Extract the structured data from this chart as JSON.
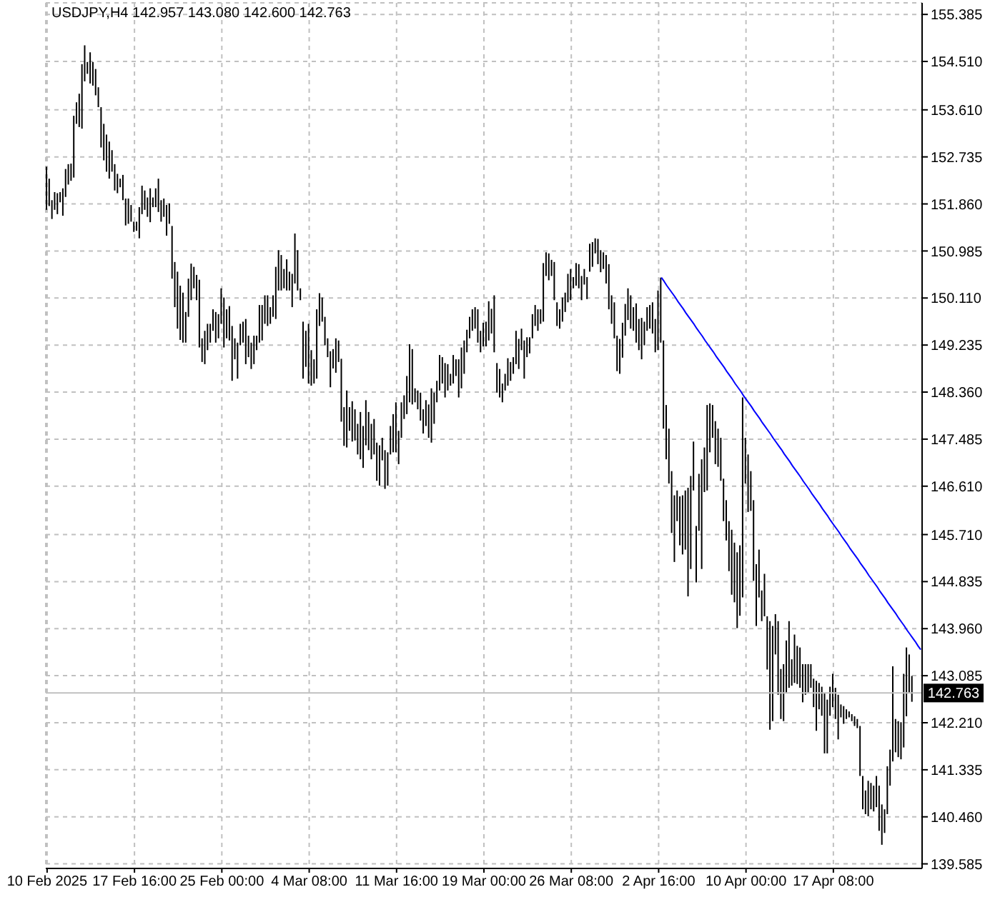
{
  "chart_data": {
    "type": "bar",
    "title": "USDJPY,H4 142.957 143.080 142.600 142.763",
    "categories": [
      "10 Feb 2025",
      null,
      null,
      null,
      null,
      null,
      null,
      null,
      null,
      null,
      null,
      null,
      null,
      null,
      null,
      null,
      null,
      null,
      null,
      null,
      null,
      null,
      null,
      null,
      null,
      null,
      null,
      null,
      null,
      null,
      null,
      null,
      "17 Feb 16:00",
      null,
      null,
      null,
      null,
      null,
      null,
      null,
      null,
      null,
      null,
      null,
      null,
      null,
      null,
      null,
      null,
      null,
      null,
      null,
      null,
      null,
      null,
      null,
      null,
      null,
      null,
      null,
      null,
      null,
      null,
      null,
      "25 Feb 00:00",
      null,
      null,
      null,
      null,
      null,
      null,
      null,
      null,
      null,
      null,
      null,
      null,
      null,
      null,
      null,
      null,
      null,
      null,
      null,
      null,
      null,
      null,
      null,
      null,
      null,
      null,
      null,
      null,
      null,
      null,
      null,
      "4 Mar 08:00",
      null,
      null,
      null,
      null,
      null,
      null,
      null,
      null,
      null,
      null,
      null,
      null,
      null,
      null,
      null,
      null,
      null,
      null,
      null,
      null,
      null,
      null,
      null,
      null,
      null,
      null,
      null,
      null,
      null,
      null,
      null,
      "11 Mar 16:00",
      null,
      null,
      null,
      null,
      null,
      null,
      null,
      null,
      null,
      null,
      null,
      null,
      null,
      null,
      null,
      null,
      null,
      null,
      null,
      null,
      null,
      null,
      null,
      null,
      null,
      null,
      null,
      null,
      null,
      null,
      null,
      "19 Mar 00:00",
      null,
      null,
      null,
      null,
      null,
      null,
      null,
      null,
      null,
      null,
      null,
      null,
      null,
      null,
      null,
      null,
      null,
      null,
      null,
      null,
      null,
      null,
      null,
      null,
      null,
      null,
      null,
      null,
      null,
      null,
      null,
      "26 Mar 08:00",
      null,
      null,
      null,
      null,
      null,
      null,
      null,
      null,
      null,
      null,
      null,
      null,
      null,
      null,
      null,
      null,
      null,
      null,
      null,
      null,
      null,
      null,
      null,
      null,
      null,
      null,
      null,
      null,
      null,
      null,
      null,
      "2 Apr 16:00",
      null,
      null,
      null,
      null,
      null,
      null,
      null,
      null,
      null,
      null,
      null,
      null,
      null,
      null,
      null,
      null,
      null,
      null,
      null,
      null,
      null,
      null,
      null,
      null,
      null,
      null,
      null,
      null,
      null,
      null,
      null,
      "10 Apr 00:00",
      null,
      null,
      null,
      null,
      null,
      null,
      null,
      null,
      null,
      null,
      null,
      null,
      null,
      null,
      null,
      null,
      null,
      null,
      null,
      null,
      null,
      null,
      null,
      null,
      null,
      null,
      null,
      null,
      null,
      null,
      null,
      "17 Apr 08:00",
      null,
      null,
      null,
      null,
      null,
      null,
      null,
      null,
      null,
      null,
      null,
      null,
      null,
      null,
      null,
      null,
      null,
      null,
      null,
      null,
      null,
      null,
      null,
      null,
      null,
      null,
      null,
      null,
      null,
      null,
      null,
      null
    ],
    "series": [
      {
        "color": "#000000",
        "base": [
          151.75,
          151.82,
          151.58,
          151.75,
          151.67,
          151.89,
          151.64,
          151.99,
          152.22,
          152.29,
          152.35,
          153.35,
          153.29,
          153.26,
          154.14,
          154.28,
          154.1,
          154.06,
          153.88,
          153.66,
          152.91,
          152.67,
          152.46,
          152.33,
          152.46,
          152.11,
          152.06,
          152.17,
          151.93,
          151.46,
          151.49,
          151.53,
          151.34,
          151.36,
          151.22,
          151.67,
          151.75,
          151.62,
          151.52,
          151.8,
          151.8,
          151.71,
          151.53,
          151.62,
          151.27,
          151.49,
          150.47,
          149.94,
          149.54,
          149.33,
          149.28,
          149.28,
          149.76,
          150.07,
          150.29,
          150.07,
          149.19,
          148.92,
          148.88,
          149.14,
          149.28,
          149.5,
          149.28,
          149.36,
          149.63,
          149.19,
          149.36,
          149.32,
          148.57,
          148.97,
          148.61,
          149.23,
          149.28,
          148.88,
          149.01,
          148.79,
          148.88,
          149.14,
          149.28,
          149.32,
          149.63,
          149.59,
          149.63,
          149.76,
          149.72,
          150.25,
          150.25,
          150.29,
          150.25,
          150.25,
          149.94,
          150.38,
          150.25,
          150.07,
          148.61,
          148.83,
          148.52,
          148.48,
          148.52,
          148.61,
          149.59,
          149.67,
          149.23,
          149.01,
          148.45,
          148.8,
          148.72,
          148.92,
          147.81,
          147.36,
          147.33,
          147.64,
          147.44,
          147.46,
          147.2,
          147.11,
          146.95,
          147.37,
          147.28,
          147.11,
          147.2,
          146.71,
          146.62,
          147.09,
          146.56,
          146.62,
          147.2,
          147.24,
          147.24,
          147.02,
          147.51,
          147.86,
          147.95,
          148.17,
          148.13,
          148.17,
          148.04,
          147.83,
          147.59,
          147.73,
          147.51,
          147.42,
          147.77,
          148.17,
          148.39,
          148.52,
          148.26,
          148.39,
          148.48,
          148.52,
          148.66,
          148.26,
          148.43,
          148.7,
          149.1,
          149.36,
          149.5,
          149.54,
          149.28,
          149.1,
          149.21,
          149.21,
          149.32,
          149.45,
          149.1,
          148.35,
          148.26,
          148.17,
          148.39,
          148.48,
          148.57,
          148.7,
          148.88,
          148.79,
          149.14,
          148.61,
          149.01,
          149.08,
          149.36,
          149.59,
          149.5,
          149.63,
          149.67,
          150.52,
          150.44,
          150.52,
          150.07,
          149.59,
          149.54,
          149.67,
          149.85,
          150.03,
          150.07,
          150.29,
          150.34,
          150.29,
          150.07,
          150.36,
          150.09,
          150.6,
          150.69,
          150.94,
          150.74,
          150.59,
          150.65,
          150.38,
          149.9,
          149.63,
          149.36,
          148.75,
          148.7,
          149.0,
          149.41,
          149.7,
          149.54,
          149.5,
          149.28,
          149.14,
          148.97,
          149.23,
          149.5,
          149.54,
          149.45,
          149.1,
          149.14,
          149.28,
          147.68,
          147.11,
          146.66,
          145.74,
          145.2,
          145.96,
          145.51,
          145.34,
          145.43,
          144.56,
          145.07,
          146.53,
          144.82,
          145.78,
          145.07,
          146.5,
          146.53,
          147.24,
          147.51,
          147.02,
          146.97,
          146.71,
          145.96,
          145.6,
          145.03,
          144.59,
          144.45,
          143.97,
          144.2,
          144.54,
          146.66,
          146.13,
          146.15,
          144.85,
          144.01,
          144.54,
          144.1,
          144.19,
          143.2,
          142.08,
          142.24,
          143.48,
          142.73,
          142.28,
          142.24,
          142.77,
          142.86,
          142.9,
          142.95,
          142.93,
          142.86,
          142.59,
          142.73,
          142.77,
          142.86,
          142.5,
          142.06,
          142.46,
          142.34,
          141.64,
          141.64,
          142.34,
          142.5,
          142.28,
          141.9,
          142.31,
          142.19,
          142.28,
          142.31,
          142.24,
          142.15,
          142.11,
          141.22,
          140.6,
          140.51,
          140.47,
          140.6,
          140.56,
          140.64,
          140.2,
          139.94,
          140.16,
          140.51,
          141.04,
          141.49,
          141.66,
          141.57,
          141.53,
          141.75,
          142.33,
          142.77,
          142.6,
          null,
          null,
          null
        ],
        "values": [
          0.8,
          0.51,
          0.35,
          0.33,
          0.39,
          0.19,
          0.51,
          0.52,
          0.38,
          0.32,
          1.15,
          0.4,
          0.62,
          1.2,
          0.67,
          0.22,
          0.58,
          0.44,
          0.49,
          0.37,
          0.75,
          0.68,
          0.69,
          0.69,
          0.4,
          0.49,
          0.36,
          0.16,
          0.47,
          0.5,
          0.47,
          0.31,
          0.19,
          0.17,
          0.58,
          0.53,
          0.36,
          0.36,
          0.63,
          0.18,
          0.35,
          0.62,
          0.4,
          0.34,
          0.57,
          0.38,
          0.98,
          0.84,
          1.06,
          1.01,
          0.93,
          0.57,
          0.71,
          0.68,
          0.4,
          0.47,
          1.26,
          0.44,
          0.62,
          0.49,
          0.35,
          0.4,
          0.57,
          0.45,
          0.66,
          0.93,
          0.54,
          0.64,
          1.02,
          0.39,
          0.67,
          0.4,
          0.39,
          0.84,
          0.4,
          0.49,
          0.53,
          0.27,
          0.7,
          0.66,
          0.53,
          0.57,
          0.31,
          0.4,
          0.97,
          0.75,
          0.66,
          0.36,
          0.58,
          0.35,
          0.62,
          0.93,
          0.75,
          0.22,
          1.06,
          0.67,
          1.11,
          0.66,
          0.45,
          1.29,
          0.61,
          0.45,
          0.53,
          0.35,
          0.67,
          0.36,
          0.64,
          0.4,
          1.17,
          0.72,
          1.06,
          0.44,
          0.75,
          0.58,
          0.57,
          0.88,
          0.78,
          0.84,
          0.71,
          0.66,
          0.66,
          0.71,
          0.75,
          0.42,
          0.72,
          0.62,
          0.53,
          0.71,
          0.93,
          0.62,
          0.66,
          0.44,
          0.71,
          1.08,
          1.03,
          0.26,
          0.35,
          0.52,
          0.45,
          0.48,
          0.62,
          1.01,
          0.58,
          0.4,
          0.66,
          0.49,
          0.64,
          0.49,
          0.22,
          0.53,
          0.31,
          0.71,
          0.76,
          0.62,
          0.42,
          0.4,
          0.4,
          0.4,
          0.62,
          0.4,
          0.44,
          0.46,
          0.73,
          0.46,
          1.06,
          0.55,
          0.53,
          0.35,
          0.31,
          0.51,
          0.35,
          0.31,
          0.62,
          0.56,
          0.4,
          0.71,
          0.37,
          0.3,
          0.45,
          0.39,
          0.4,
          0.27,
          1.09,
          0.44,
          0.5,
          0.3,
          0.71,
          0.44,
          0.36,
          0.45,
          0.36,
          0.53,
          0.58,
          0.21,
          0.42,
          0.45,
          0.45,
          0.29,
          0.41,
          0.52,
          0.46,
          0.28,
          0.47,
          0.41,
          0.31,
          0.53,
          0.84,
          0.53,
          0.67,
          0.66,
          0.65,
          0.65,
          0.59,
          0.59,
          0.62,
          0.44,
          0.73,
          0.58,
          0.77,
          0.44,
          0.44,
          0.44,
          0.58,
          0.62,
          1.11,
          1.21,
          1.64,
          1.01,
          1.02,
          1.15,
          1.24,
          0.57,
          0.91,
          1.1,
          1.1,
          2.02,
          1.73,
          0.91,
          1.05,
          1.06,
          2.04,
          0.83,
          1.59,
          0.91,
          0.61,
          0.8,
          0.71,
          0.8,
          0.79,
          0.75,
          0.93,
          1.21,
          1.11,
          1.41,
          1.31,
          3.72,
          0.85,
          1.07,
          0.74,
          1.5,
          1.15,
          0.89,
          0.57,
          0.79,
          0.99,
          2.02,
          1.77,
          0.75,
          1.37,
          0.93,
          1.06,
          0.97,
          1.24,
          0.49,
          0.9,
          0.71,
          0.75,
          0.71,
          0.57,
          0.53,
          0.44,
          0.53,
          0.93,
          0.49,
          0.54,
          1.13,
          1.0,
          0.54,
          0.62,
          0.58,
          0.83,
          0.24,
          0.33,
          0.18,
          0.11,
          0.13,
          0.18,
          0.17,
          0.93,
          0.62,
          0.44,
          0.66,
          0.49,
          0.48,
          0.58,
          0.84,
          0.75,
          0.44,
          0.89,
          0.67,
          1.77,
          0.62,
          0.67,
          0.69,
          1.37,
          1.28,
          0.71,
          0.48,
          null,
          null,
          null
        ]
      },
      {
        "type": "line",
        "color": "#0000ff",
        "values": [
          null,
          null,
          null,
          null,
          null,
          null,
          null,
          null,
          null,
          null,
          null,
          null,
          null,
          null,
          null,
          null,
          null,
          null,
          null,
          null,
          null,
          null,
          null,
          null,
          null,
          null,
          null,
          null,
          null,
          null,
          null,
          null,
          null,
          null,
          null,
          null,
          null,
          null,
          null,
          null,
          null,
          null,
          null,
          null,
          null,
          null,
          null,
          null,
          null,
          null,
          null,
          null,
          null,
          null,
          null,
          null,
          null,
          null,
          null,
          null,
          null,
          null,
          null,
          null,
          null,
          null,
          null,
          null,
          null,
          null,
          null,
          null,
          null,
          null,
          null,
          null,
          null,
          null,
          null,
          null,
          null,
          null,
          null,
          null,
          null,
          null,
          null,
          null,
          null,
          null,
          null,
          null,
          null,
          null,
          null,
          null,
          null,
          null,
          null,
          null,
          null,
          null,
          null,
          null,
          null,
          null,
          null,
          null,
          null,
          null,
          null,
          null,
          null,
          null,
          null,
          null,
          null,
          null,
          null,
          null,
          null,
          null,
          null,
          null,
          null,
          null,
          null,
          null,
          null,
          null,
          null,
          null,
          null,
          null,
          null,
          null,
          null,
          null,
          null,
          null,
          null,
          null,
          null,
          null,
          null,
          null,
          null,
          null,
          null,
          null,
          null,
          null,
          null,
          null,
          null,
          null,
          null,
          null,
          null,
          null,
          null,
          null,
          null,
          null,
          null,
          null,
          null,
          null,
          null,
          null,
          null,
          null,
          null,
          null,
          null,
          null,
          null,
          null,
          null,
          null,
          null,
          null,
          null,
          null,
          null,
          null,
          null,
          null,
          null,
          null,
          null,
          null,
          null,
          null,
          null,
          null,
          null,
          null,
          null,
          null,
          null,
          null,
          null,
          null,
          null,
          null,
          null,
          null,
          null,
          null,
          null,
          null,
          null,
          null,
          null,
          null,
          null,
          null,
          null,
          null,
          null,
          null,
          null,
          null,
          null,
          150.49,
          150.42,
          150.34,
          150.27,
          150.2,
          150.13,
          150.05,
          149.98,
          149.91,
          149.83,
          149.76,
          149.69,
          149.62,
          149.54,
          149.47,
          149.4,
          149.32,
          149.25,
          149.18,
          149.11,
          149.03,
          148.96,
          148.89,
          148.82,
          148.74,
          148.67,
          148.6,
          148.52,
          148.45,
          148.38,
          148.3,
          148.23,
          148.16,
          148.09,
          148.01,
          147.94,
          147.87,
          147.79,
          147.72,
          147.65,
          147.58,
          147.5,
          147.43,
          147.36,
          147.29,
          147.21,
          147.14,
          147.07,
          146.99,
          146.92,
          146.85,
          146.78,
          146.7,
          146.63,
          146.56,
          146.48,
          146.41,
          146.34,
          146.27,
          146.19,
          146.12,
          146.05,
          145.97,
          145.9,
          145.83,
          145.76,
          145.68,
          145.61,
          145.54,
          145.46,
          145.39,
          145.32,
          145.25,
          145.17,
          145.1,
          145.03,
          144.95,
          144.88,
          144.81,
          144.74,
          144.66,
          144.59,
          144.52,
          144.44,
          144.37,
          144.3,
          144.23,
          144.15,
          144.08,
          144.01,
          143.93,
          143.86,
          143.79,
          143.72,
          143.64,
          143.57
        ]
      }
    ],
    "ylim": [
      139.5,
      155.6
    ],
    "yticks": [
      139.585,
      {
        "value": 140.46,
        "label": "140.460"
      },
      141.335,
      {
        "value": 142.21,
        "label": "142.210"
      },
      143.085,
      {
        "value": 143.96,
        "label": "143.960"
      },
      144.835,
      {
        "value": 145.71,
        "label": "145.710"
      },
      {
        "value": 146.61,
        "label": "146.610"
      },
      147.485,
      {
        "value": 148.36,
        "label": "148.360"
      },
      149.235,
      {
        "value": 150.11,
        "label": "150.110"
      },
      150.985,
      {
        "value": 151.86,
        "label": "151.860"
      },
      152.735,
      {
        "value": 153.61,
        "label": "153.610"
      },
      {
        "value": 154.51,
        "label": "154.510"
      },
      155.385
    ],
    "grid": true,
    "ref_lines": [
      {
        "axis": "y",
        "value": 142.763,
        "label": "142.763",
        "color": "#c0c0c0"
      }
    ]
  }
}
